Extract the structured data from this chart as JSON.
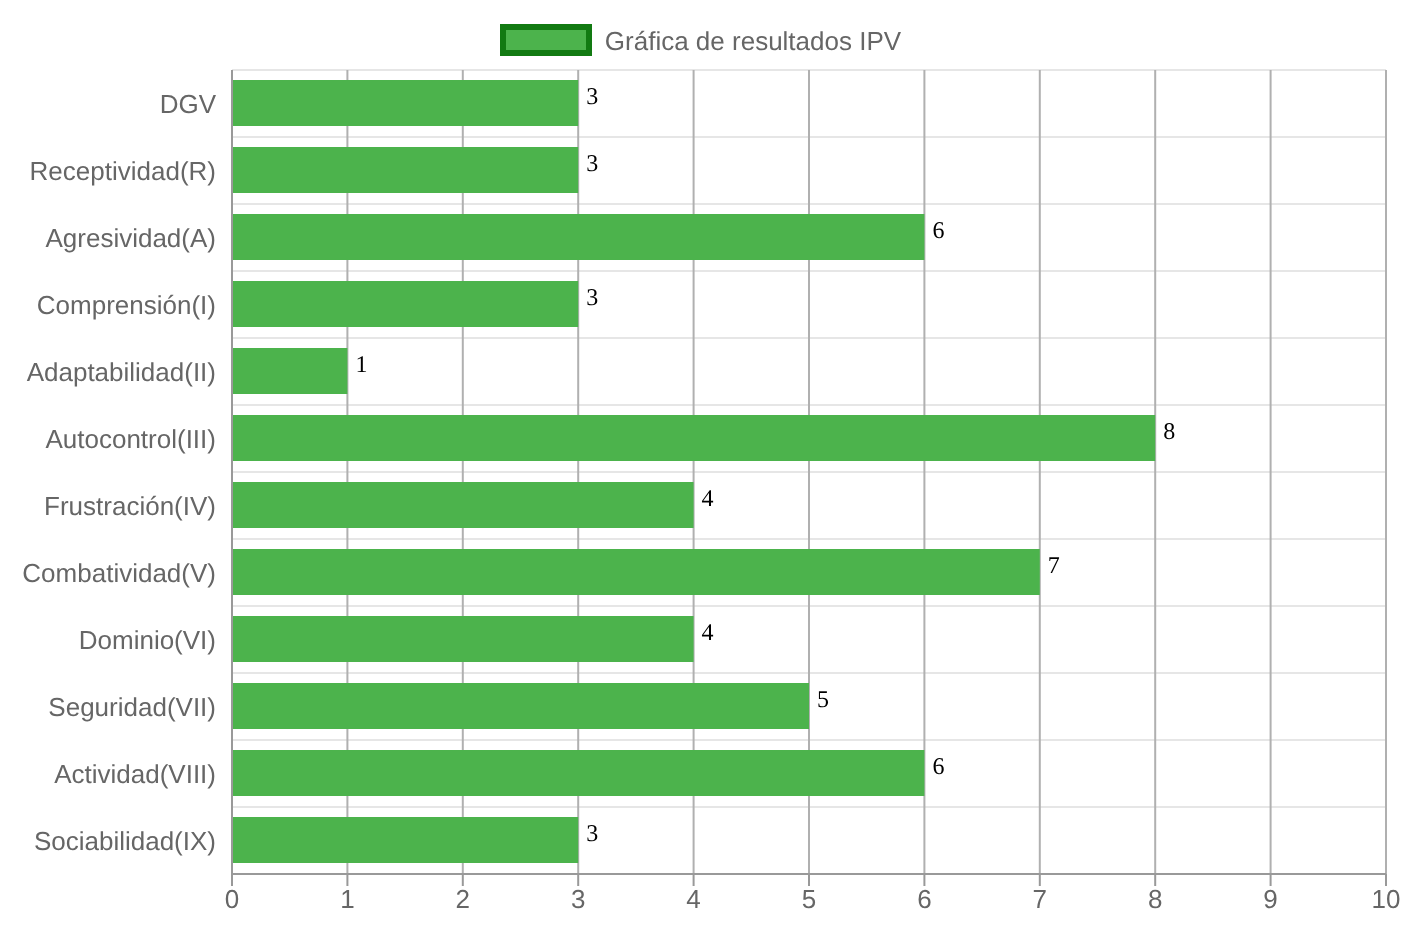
{
  "chart_data": {
    "type": "bar",
    "orientation": "horizontal",
    "categories": [
      "DGV",
      "Receptividad(R)",
      "Agresividad(A)",
      "Comprensión(I)",
      "Adaptabilidad(II)",
      "Autocontrol(III)",
      "Frustración(IV)",
      "Combatividad(V)",
      "Dominio(VI)",
      "Seguridad(VII)",
      "Actividad(VIII)",
      "Sociabilidad(IX)"
    ],
    "series": [
      {
        "name": "Gráfica de resultados IPV",
        "color": "#4cb34c",
        "values": [
          3,
          3,
          6,
          3,
          1,
          8,
          4,
          7,
          4,
          5,
          6,
          3
        ]
      }
    ],
    "xlim": [
      0,
      10
    ],
    "xticks": [
      0,
      1,
      2,
      3,
      4,
      5,
      6,
      7,
      8,
      9,
      10
    ],
    "grid": true,
    "legend": "top",
    "data_labels": true
  }
}
